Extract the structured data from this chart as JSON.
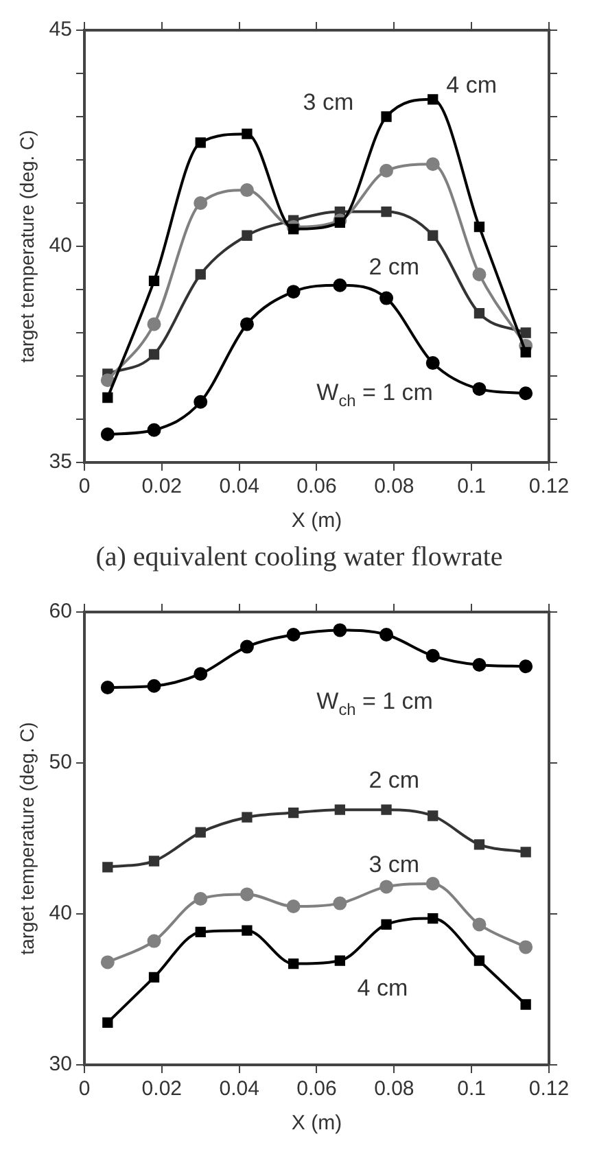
{
  "chart_data": [
    {
      "type": "line",
      "xlabel": "X (m)",
      "ylabel": "target temperature (deg. C)",
      "x": [
        0.006,
        0.018,
        0.03,
        0.042,
        0.054,
        0.066,
        0.078,
        0.09,
        0.102,
        0.114
      ],
      "xlim": [
        0,
        0.12
      ],
      "xticks": [
        0,
        0.02,
        0.04,
        0.06,
        0.08,
        0.1,
        0.12
      ],
      "ylim": [
        35,
        45
      ],
      "yticks": [
        35,
        {
          "value": 36,
          "label": null
        },
        {
          "value": 37,
          "label": null
        },
        {
          "value": 38,
          "label": null
        },
        {
          "value": 39,
          "label": null
        },
        40,
        {
          "value": 41,
          "label": null
        },
        {
          "value": 42,
          "label": null
        },
        {
          "value": 43,
          "label": null
        },
        {
          "value": 44,
          "label": null
        },
        45
      ],
      "grid": false,
      "legend": false,
      "series": [
        {
          "color": "#000000",
          "marker": "circle",
          "values": [
            35.65,
            35.75,
            36.4,
            38.2,
            38.95,
            39.1,
            38.8,
            37.3,
            36.7,
            36.6
          ]
        },
        {
          "color": "#333333",
          "marker": "square",
          "values": [
            37.05,
            37.5,
            39.35,
            40.25,
            40.6,
            40.8,
            40.8,
            40.25,
            38.45,
            38.0
          ]
        },
        {
          "color": "#808080",
          "marker": "circle",
          "values": [
            36.9,
            38.2,
            41.0,
            41.3,
            40.45,
            40.6,
            41.75,
            41.9,
            39.35,
            37.7
          ]
        },
        {
          "color": "#000000",
          "marker": "square",
          "values": [
            36.5,
            39.2,
            42.4,
            42.6,
            40.4,
            40.55,
            43.0,
            43.4,
            40.45,
            37.55
          ]
        }
      ],
      "annotations": [
        "W$_{ch}$ = 1 cm",
        "2 cm",
        "3 cm",
        "4 cm",
        "(a) equivalent cooling water flowrate"
      ]
    },
    {
      "type": "line",
      "xlabel": "X (m)",
      "ylabel": "target temperature (deg. C)",
      "x": [
        0.006,
        0.018,
        0.03,
        0.042,
        0.054,
        0.066,
        0.078,
        0.09,
        0.102,
        0.114
      ],
      "xlim": [
        0,
        0.12
      ],
      "xticks": [
        0,
        0.02,
        0.04,
        0.06,
        0.08,
        0.1,
        0.12
      ],
      "ylim": [
        30,
        60
      ],
      "yticks": [
        30,
        40,
        50,
        60
      ],
      "grid": false,
      "legend": false,
      "series": [
        {
          "color": "#000000",
          "marker": "circle",
          "values": [
            55.0,
            55.1,
            55.9,
            57.7,
            58.5,
            58.8,
            58.5,
            57.1,
            56.5,
            56.4
          ]
        },
        {
          "color": "#333333",
          "marker": "square",
          "values": [
            43.1,
            43.5,
            45.4,
            46.4,
            46.7,
            46.9,
            46.9,
            46.5,
            44.6,
            44.1
          ]
        },
        {
          "color": "#808080",
          "marker": "circle",
          "values": [
            36.8,
            38.2,
            41.0,
            41.3,
            40.5,
            40.7,
            41.8,
            42.0,
            39.3,
            37.8
          ]
        },
        {
          "color": "#000000",
          "marker": "square",
          "values": [
            32.8,
            35.8,
            38.8,
            38.9,
            36.7,
            36.9,
            39.3,
            39.7,
            36.9,
            34.0
          ]
        }
      ],
      "annotations": [
        "W$_{ch}$ = 1 cm",
        "2 cm",
        "3 cm",
        "4 cm"
      ]
    }
  ]
}
